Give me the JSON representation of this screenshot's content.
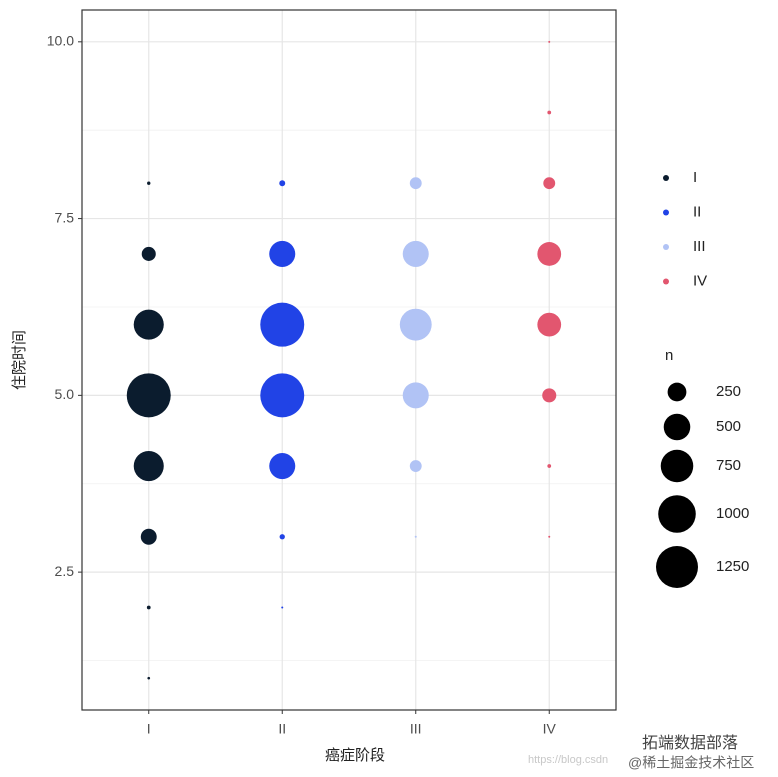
{
  "chart_data": {
    "type": "scatter",
    "x_label": "癌症阶段",
    "y_label": "住院时间",
    "categories": [
      "I",
      "II",
      "III",
      "IV"
    ],
    "ylim": [
      0.55,
      10.45
    ],
    "yticks": [
      {
        "value": 2.5,
        "label": "2.5"
      },
      {
        "value": 5,
        "label": "5.0"
      },
      {
        "value": 7.5,
        "label": "7.5"
      },
      {
        "value": 10,
        "label": "10.0"
      }
    ],
    "y_minor_grid": [
      1.25,
      3.75,
      6.25,
      8.75
    ],
    "grid": true,
    "series": [
      {
        "name": "I",
        "color": "#0b1c2e",
        "x": [
          "I",
          "I",
          "I",
          "I",
          "I",
          "I",
          "I",
          "I"
        ],
        "values": [
          1,
          2,
          3,
          4,
          5,
          6,
          7,
          8
        ],
        "sizes": [
          5,
          10,
          180,
          640,
          1370,
          640,
          140,
          8
        ]
      },
      {
        "name": "II",
        "color": "#2143e6",
        "x": [
          "II",
          "II",
          "II",
          "II",
          "II",
          "II",
          "II"
        ],
        "values": [
          2,
          3,
          4,
          5,
          6,
          7,
          8
        ],
        "sizes": [
          3,
          20,
          480,
          1370,
          1370,
          480,
          25
        ]
      },
      {
        "name": "III",
        "color": "#b1c3f5",
        "x": [
          "III",
          "III",
          "III",
          "III",
          "III",
          "III"
        ],
        "values": [
          3,
          4,
          5,
          6,
          7,
          8
        ],
        "sizes": [
          3,
          100,
          480,
          720,
          480,
          100
        ]
      },
      {
        "name": "IV",
        "color": "#e2566f",
        "x": [
          "IV",
          "IV",
          "IV",
          "IV",
          "IV",
          "IV",
          "IV",
          "IV"
        ],
        "values": [
          3,
          4,
          5,
          6,
          7,
          8,
          9,
          10
        ],
        "sizes": [
          2,
          10,
          140,
          400,
          400,
          100,
          10,
          2
        ]
      }
    ],
    "size_legend": {
      "title": "n",
      "values": [
        250,
        500,
        750,
        1000,
        1250
      ]
    },
    "watermarks": [
      "https://blog.csdn",
      "拓端数据部落",
      "@稀土掘金技术社区"
    ]
  }
}
